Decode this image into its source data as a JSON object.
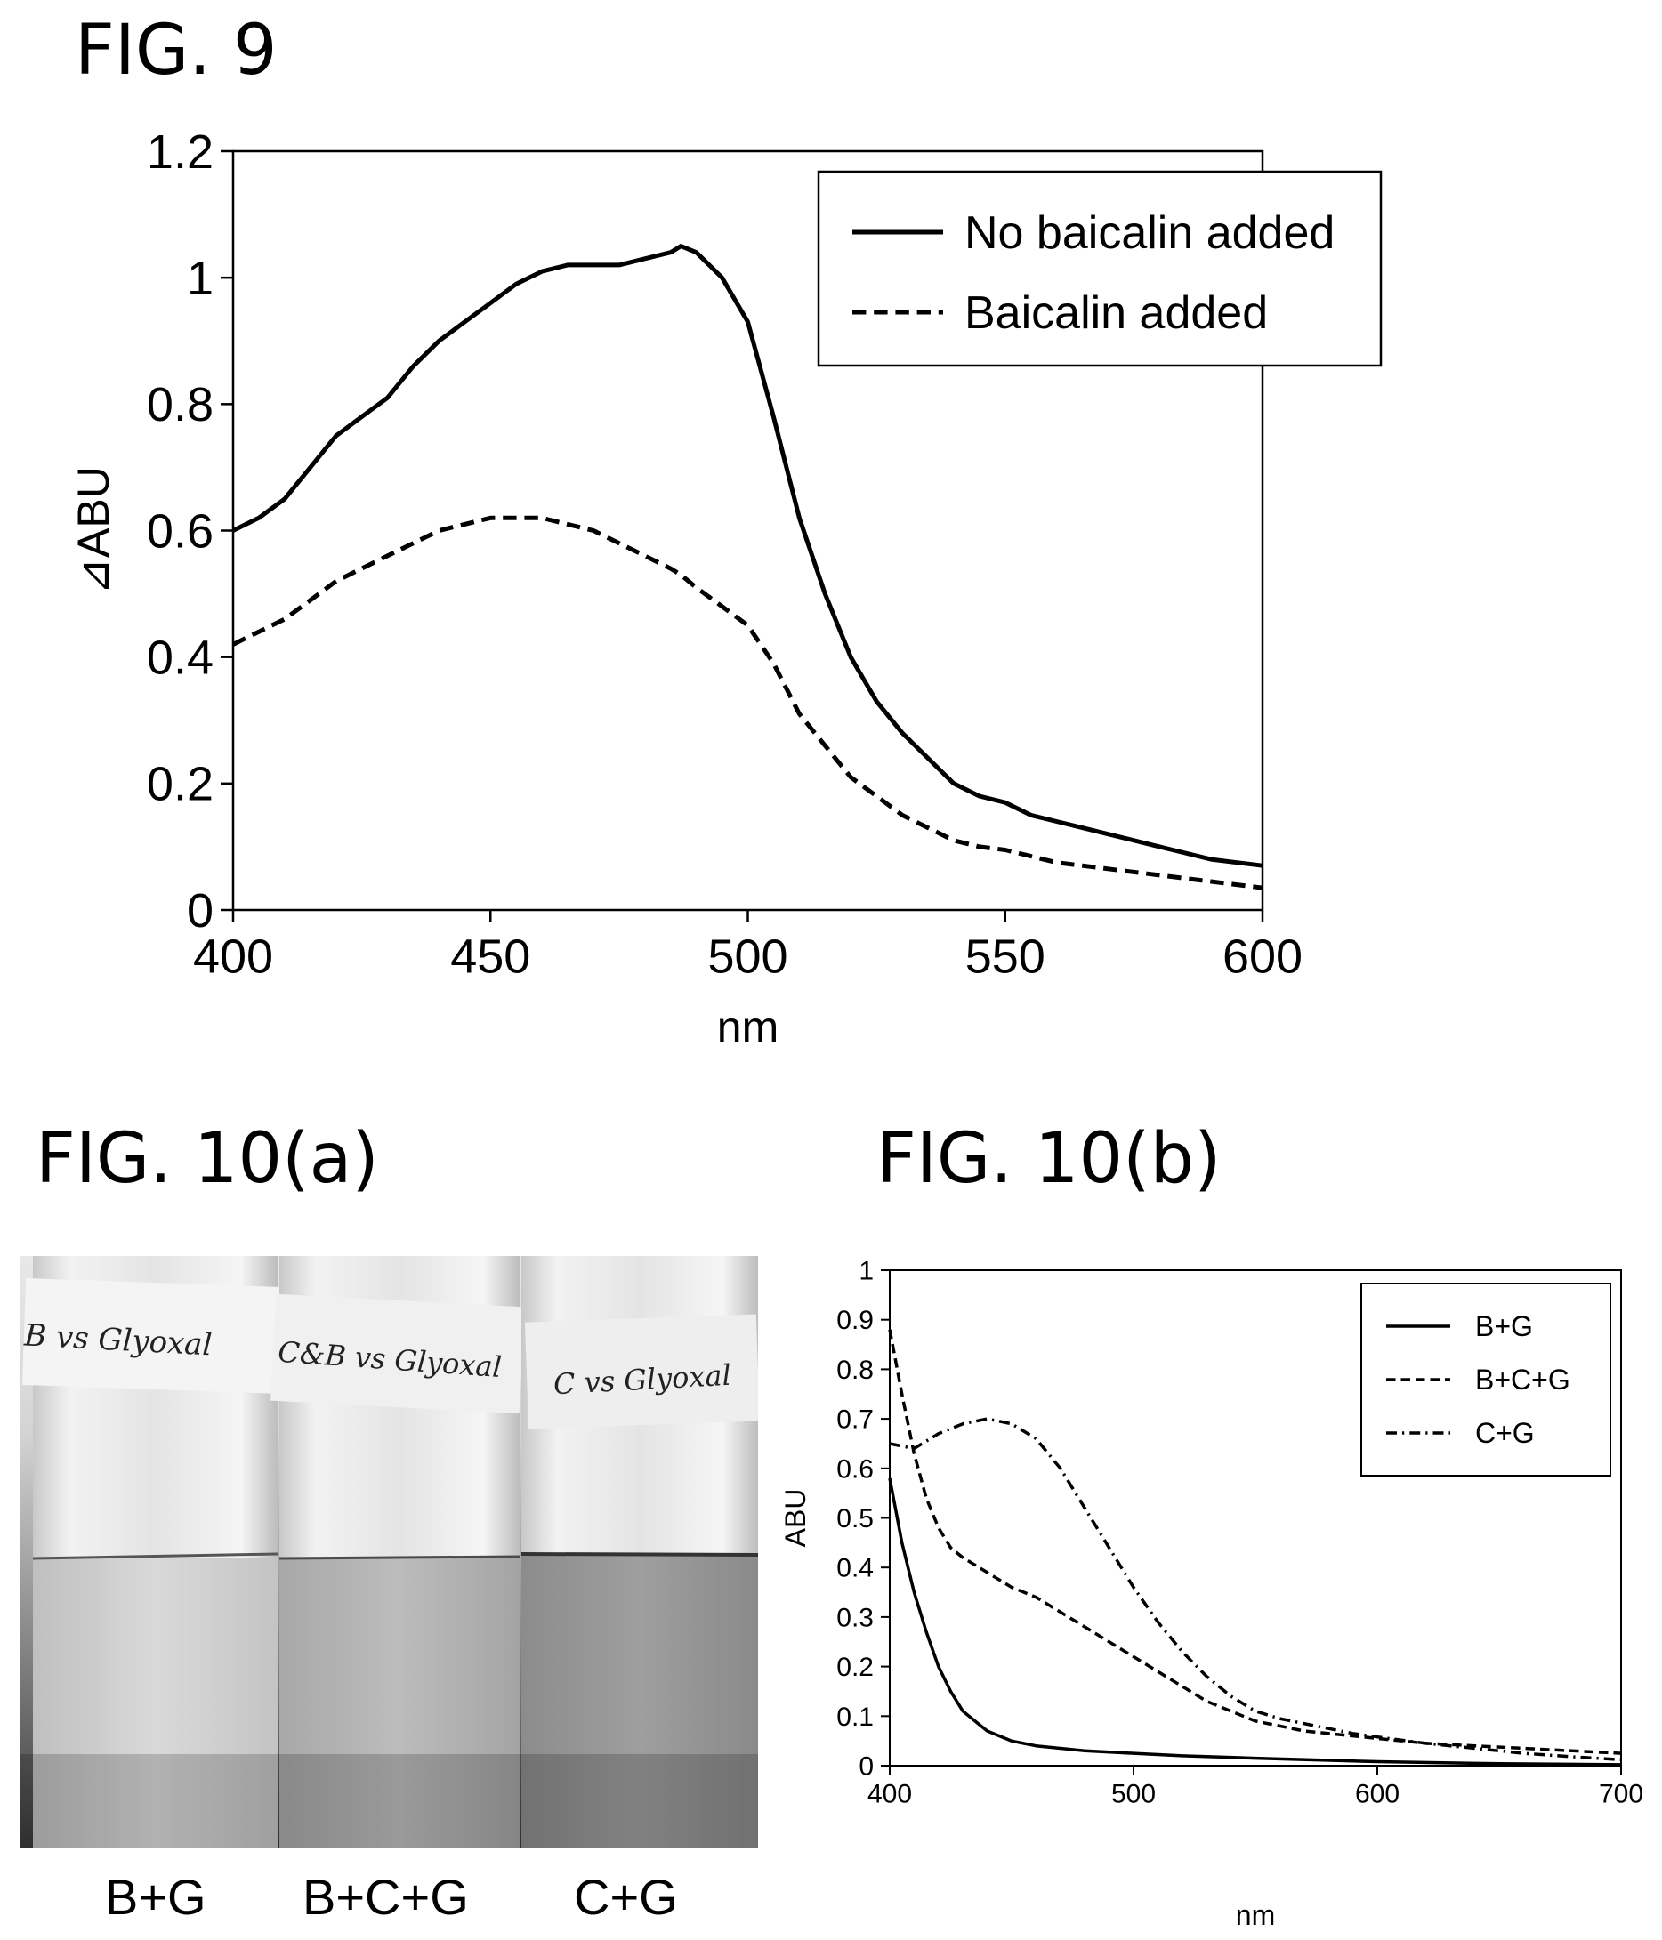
{
  "fig9": {
    "title": "FIG. 9",
    "chart_data": {
      "type": "line",
      "xlabel": "nm",
      "ylabel": "⊿ABU",
      "xlim": [
        400,
        600
      ],
      "ylim": [
        0,
        1.2
      ],
      "xticks": [
        400,
        450,
        500,
        550,
        600
      ],
      "yticks": [
        0,
        0.2,
        0.4,
        0.6,
        0.8,
        1,
        1.2
      ],
      "ytick_labels": [
        "0",
        "0.2",
        "0.4",
        "0.6",
        "0.8",
        "1",
        "1.2"
      ],
      "legend_position": "top-right",
      "series": [
        {
          "name": "No baicalin added",
          "style": "solid",
          "x": [
            400,
            405,
            410,
            415,
            420,
            425,
            430,
            435,
            440,
            445,
            450,
            455,
            460,
            465,
            470,
            475,
            480,
            485,
            487,
            490,
            495,
            500,
            505,
            510,
            515,
            520,
            525,
            530,
            535,
            540,
            545,
            550,
            555,
            560,
            565,
            570,
            575,
            580,
            585,
            590,
            595,
            600
          ],
          "y": [
            0.6,
            0.62,
            0.65,
            0.7,
            0.75,
            0.78,
            0.81,
            0.86,
            0.9,
            0.93,
            0.96,
            0.99,
            1.01,
            1.02,
            1.02,
            1.02,
            1.03,
            1.04,
            1.05,
            1.04,
            1.0,
            0.93,
            0.78,
            0.62,
            0.5,
            0.4,
            0.33,
            0.28,
            0.24,
            0.2,
            0.18,
            0.17,
            0.15,
            0.14,
            0.13,
            0.12,
            0.11,
            0.1,
            0.09,
            0.08,
            0.075,
            0.07
          ]
        },
        {
          "name": "Baicalin added",
          "style": "dashed",
          "x": [
            400,
            405,
            410,
            415,
            420,
            425,
            430,
            435,
            440,
            445,
            450,
            455,
            460,
            465,
            470,
            475,
            480,
            485,
            487,
            490,
            495,
            500,
            505,
            510,
            515,
            520,
            525,
            530,
            535,
            540,
            545,
            550,
            555,
            560,
            565,
            570,
            575,
            580,
            585,
            590,
            595,
            600
          ],
          "y": [
            0.42,
            0.44,
            0.46,
            0.49,
            0.52,
            0.54,
            0.56,
            0.58,
            0.6,
            0.61,
            0.62,
            0.62,
            0.62,
            0.61,
            0.6,
            0.58,
            0.56,
            0.54,
            0.53,
            0.51,
            0.48,
            0.45,
            0.39,
            0.31,
            0.26,
            0.21,
            0.18,
            0.15,
            0.13,
            0.11,
            0.1,
            0.095,
            0.085,
            0.075,
            0.07,
            0.065,
            0.06,
            0.055,
            0.05,
            0.045,
            0.04,
            0.035
          ]
        }
      ]
    }
  },
  "fig10a": {
    "title": "FIG. 10(a)",
    "vial_handwriting": [
      "B vs Glyoxal",
      "C&B vs Glyoxal",
      "C vs Glyoxal"
    ],
    "vial_labels": [
      "B+G",
      "B+C+G",
      "C+G"
    ]
  },
  "fig10b": {
    "title": "FIG. 10(b)",
    "chart_data": {
      "type": "line",
      "xlabel": "nm",
      "ylabel": "ABU",
      "xlim": [
        400,
        700
      ],
      "ylim": [
        0,
        1
      ],
      "xticks": [
        400,
        500,
        600,
        700
      ],
      "yticks": [
        0,
        0.1,
        0.2,
        0.3,
        0.4,
        0.5,
        0.6,
        0.7,
        0.8,
        0.9,
        1
      ],
      "ytick_labels": [
        "0",
        "0.1",
        "0.2",
        "0.3",
        "0.4",
        "0.5",
        "0.6",
        "0.7",
        "0.8",
        "0.9",
        "1"
      ],
      "legend_position": "top-right",
      "series": [
        {
          "name": "B+G",
          "style": "solid",
          "x": [
            400,
            405,
            410,
            415,
            420,
            425,
            430,
            435,
            440,
            450,
            460,
            480,
            500,
            520,
            550,
            600,
            650,
            700
          ],
          "y": [
            0.58,
            0.45,
            0.35,
            0.27,
            0.2,
            0.15,
            0.11,
            0.09,
            0.07,
            0.05,
            0.04,
            0.03,
            0.025,
            0.02,
            0.015,
            0.008,
            0.004,
            0.002
          ]
        },
        {
          "name": "B+C+G",
          "style": "dashed",
          "x": [
            400,
            405,
            410,
            415,
            420,
            425,
            430,
            440,
            450,
            460,
            470,
            480,
            490,
            500,
            510,
            520,
            530,
            540,
            550,
            560,
            570,
            580,
            590,
            600,
            620,
            640,
            660,
            680,
            700
          ],
          "y": [
            0.88,
            0.75,
            0.63,
            0.54,
            0.48,
            0.44,
            0.42,
            0.39,
            0.36,
            0.34,
            0.31,
            0.28,
            0.25,
            0.22,
            0.19,
            0.16,
            0.13,
            0.11,
            0.09,
            0.08,
            0.07,
            0.065,
            0.06,
            0.055,
            0.045,
            0.04,
            0.035,
            0.03,
            0.025
          ]
        },
        {
          "name": "C+G",
          "style": "dash-dot",
          "x": [
            400,
            410,
            420,
            430,
            440,
            450,
            460,
            470,
            480,
            490,
            500,
            510,
            520,
            530,
            540,
            550,
            560,
            570,
            580,
            590,
            600,
            620,
            640,
            660,
            680,
            700
          ],
          "y": [
            0.65,
            0.64,
            0.67,
            0.69,
            0.7,
            0.69,
            0.66,
            0.6,
            0.52,
            0.44,
            0.36,
            0.29,
            0.23,
            0.18,
            0.14,
            0.11,
            0.095,
            0.085,
            0.075,
            0.065,
            0.058,
            0.045,
            0.035,
            0.025,
            0.018,
            0.012
          ]
        }
      ]
    }
  },
  "colors": {
    "line": "#000000",
    "background": "#ffffff"
  }
}
